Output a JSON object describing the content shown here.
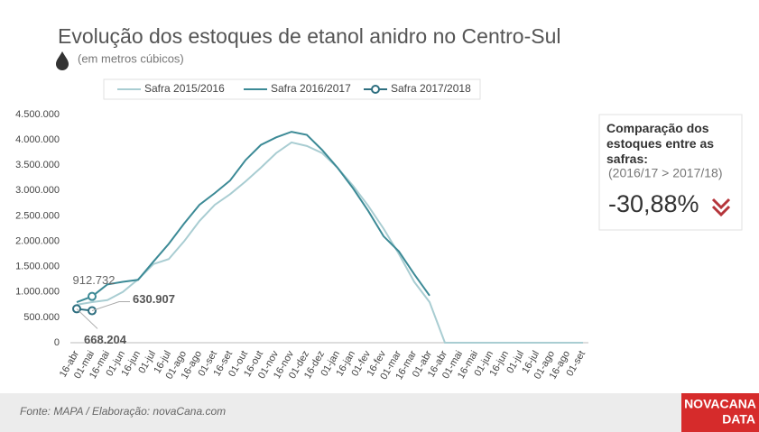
{
  "chart_data": {
    "type": "line",
    "title": "Evolução dos estoques de etanol anidro no Centro-Sul",
    "subtitle": "(em metros cúbicos)",
    "categories": [
      "16-abr",
      "01-mai",
      "16-mai",
      "01-jun",
      "16-jun",
      "01-jul",
      "16-jul",
      "01-ago",
      "16-ago",
      "01-set",
      "16-set",
      "01-out",
      "16-out",
      "01-nov",
      "16-nov",
      "01-dez",
      "16-dez",
      "01-jan",
      "16-jan",
      "01-fev",
      "16-fev",
      "01-mar",
      "16-mar",
      "01-abr",
      "16-abr",
      "01-mai",
      "16-mai",
      "01-jun",
      "16-jun",
      "01-jul",
      "16-jul",
      "01-ago",
      "16-ago",
      "01-set"
    ],
    "series": [
      {
        "name": "Safra 2015/2016",
        "color": "#a9cdd2",
        "values": [
          750000,
          800000,
          840000,
          1000000,
          1250000,
          1550000,
          1650000,
          2000000,
          2400000,
          2720000,
          2930000,
          3180000,
          3450000,
          3740000,
          3950000,
          3880000,
          3740000,
          3450000,
          3100000,
          2700000,
          2250000,
          1750000,
          1200000,
          800000,
          0,
          0,
          0,
          0,
          0,
          0,
          0,
          0,
          0,
          0
        ]
      },
      {
        "name": "Safra 2016/2017",
        "color": "#3c8a96",
        "values": [
          800000,
          912732,
          1150000,
          1200000,
          1240000,
          1600000,
          1950000,
          2350000,
          2720000,
          2950000,
          3200000,
          3600000,
          3900000,
          4050000,
          4160000,
          4100000,
          3800000,
          3450000,
          3050000,
          2600000,
          2100000,
          1800000,
          1350000,
          928000,
          null,
          null,
          null,
          null,
          null,
          null,
          null,
          null,
          null,
          null
        ],
        "value_labels": [
          null,
          "912.732",
          null,
          null,
          null,
          null,
          null,
          null,
          null,
          null,
          null,
          null,
          null,
          null,
          null,
          null,
          null,
          null,
          null,
          null,
          null,
          null,
          null,
          null,
          null,
          null,
          null,
          null,
          null,
          null,
          null,
          null,
          null,
          null
        ]
      },
      {
        "name": "Safra 2017/2018",
        "color": "#2e6f80",
        "marker": "circle",
        "values": [
          668204,
          630907,
          null,
          null,
          null,
          null,
          null,
          null,
          null,
          null,
          null,
          null,
          null,
          null,
          null,
          null,
          null,
          null,
          null,
          null,
          null,
          null,
          null,
          null,
          null,
          null,
          null,
          null,
          null,
          null,
          null,
          null,
          null,
          null
        ],
        "value_labels": [
          "668.204",
          "630.907",
          null,
          null,
          null,
          null,
          null,
          null,
          null,
          null,
          null,
          null,
          null,
          null,
          null,
          null,
          null,
          null,
          null,
          null,
          null,
          null,
          null,
          null,
          null,
          null,
          null,
          null,
          null,
          null,
          null,
          null,
          null,
          null
        ]
      }
    ],
    "ylim": [
      0,
      4500000
    ],
    "yticks": [
      0,
      {
        "value": 500000,
        "label": "500.000"
      },
      {
        "value": 1000000,
        "label": "1.000.000"
      },
      {
        "value": 1500000,
        "label": "1.500.000"
      },
      {
        "value": 2000000,
        "label": "2.000.000"
      },
      {
        "value": 2500000,
        "label": "2.500.000"
      },
      {
        "value": 3000000,
        "label": "3.000.000"
      },
      {
        "value": 3500000,
        "label": "3.500.000"
      },
      {
        "value": 4000000,
        "label": "4.000.000"
      },
      {
        "value": 4500000,
        "label": "4.500.000"
      }
    ],
    "grid": false,
    "legend": "top",
    "panel": {
      "heading": "Comparação dos estoques entre as safras:",
      "note": "(2016/17 > 2017/18)",
      "value": "-30,88%"
    },
    "source": "Fonte: MAPA  / Elaboração: novaCana.com",
    "logo": [
      "NOVACANA",
      "DATA"
    ]
  }
}
